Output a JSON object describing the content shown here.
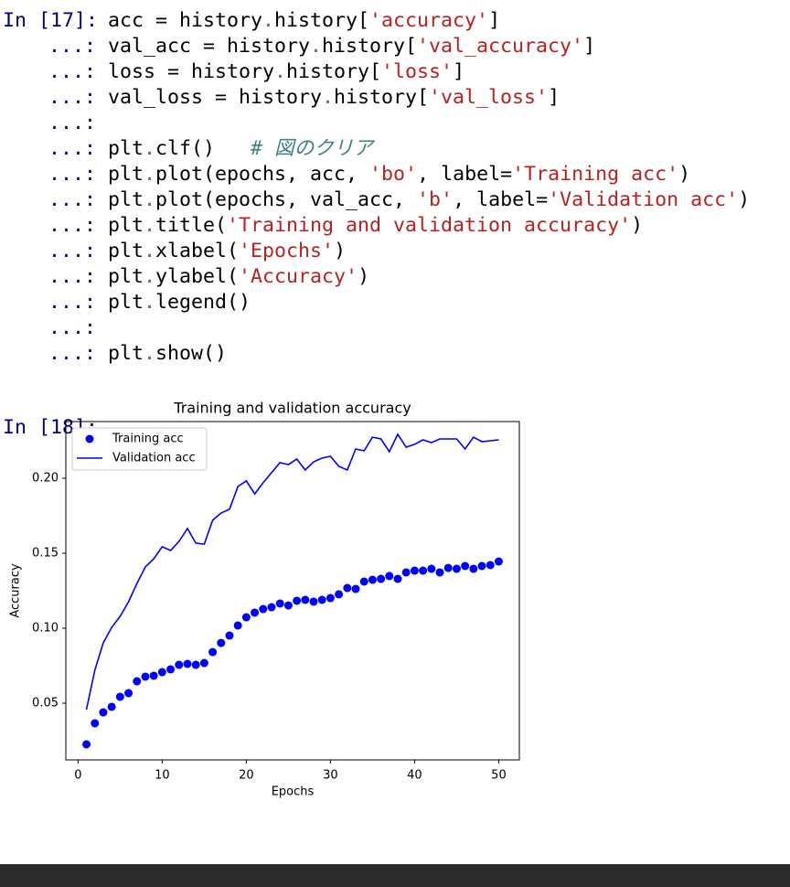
{
  "console": {
    "cells": [
      {
        "prompt": "In [17]:",
        "lines": [
          [
            "acc = history",
            ".",
            "history[",
            "'accuracy'",
            "]"
          ],
          [
            "val_acc = history",
            ".",
            "history[",
            "'val_accuracy'",
            "]"
          ],
          [
            "loss = history",
            ".",
            "history[",
            "'loss'",
            "]"
          ],
          [
            "val_loss = history",
            ".",
            "history[",
            "'val_loss'",
            "]"
          ],
          [],
          [
            "plt",
            ".",
            "clf()   ",
            "# 図のクリア"
          ],
          [
            "plt",
            ".",
            "plot(epochs, acc, ",
            "'bo'",
            ", label=",
            "'Training acc'",
            ")"
          ],
          [
            "plt",
            ".",
            "plot(epochs, val_acc, ",
            "'b'",
            ", label=",
            "'Validation acc'",
            ")"
          ],
          [
            "plt",
            ".",
            "title(",
            "'Training and validation accuracy'",
            ")"
          ],
          [
            "plt",
            ".",
            "xlabel(",
            "'Epochs'",
            ")"
          ],
          [
            "plt",
            ".",
            "ylabel(",
            "'Accuracy'",
            ")"
          ],
          [
            "plt",
            ".",
            "legend()"
          ],
          [],
          [
            "plt",
            ".",
            "show()"
          ]
        ]
      },
      {
        "prompt": "In [18]:",
        "lines": [
          []
        ]
      }
    ],
    "continuation": "...:"
  },
  "chart_data": {
    "type": "line",
    "title": "Training and validation accuracy",
    "x_label": "Epochs",
    "y_label": "Accuracy",
    "x": [
      1,
      2,
      3,
      4,
      5,
      6,
      7,
      8,
      9,
      10,
      11,
      12,
      13,
      14,
      15,
      16,
      17,
      18,
      19,
      20,
      21,
      22,
      23,
      24,
      25,
      26,
      27,
      28,
      29,
      30,
      31,
      32,
      33,
      34,
      35,
      36,
      37,
      38,
      39,
      40,
      41,
      42,
      43,
      44,
      45,
      46,
      47,
      48,
      49,
      50
    ],
    "series": [
      {
        "name": "Training acc",
        "color": "#0000ff",
        "style": "bo",
        "values": [
          0.0226,
          0.0366,
          0.0439,
          0.0476,
          0.0543,
          0.0567,
          0.0646,
          0.0677,
          0.0683,
          0.0707,
          0.0726,
          0.0756,
          0.0762,
          0.0756,
          0.0768,
          0.0841,
          0.0902,
          0.0951,
          0.1018,
          0.1073,
          0.1104,
          0.1128,
          0.114,
          0.1165,
          0.1152,
          0.1183,
          0.1189,
          0.1177,
          0.1189,
          0.1201,
          0.1226,
          0.1268,
          0.1262,
          0.1311,
          0.1323,
          0.1329,
          0.1348,
          0.1329,
          0.1372,
          0.1384,
          0.1384,
          0.1396,
          0.1372,
          0.1402,
          0.1396,
          0.1415,
          0.1396,
          0.1415,
          0.1421,
          0.1445
        ]
      },
      {
        "name": "Validation acc",
        "color": "#0000ff",
        "style": "b",
        "values": [
          0.0457,
          0.072,
          0.0902,
          0.1006,
          0.1079,
          0.1177,
          0.1299,
          0.1409,
          0.1463,
          0.1543,
          0.1518,
          0.1579,
          0.1665,
          0.1567,
          0.1561,
          0.172,
          0.1768,
          0.1793,
          0.1945,
          0.1982,
          0.1896,
          0.197,
          0.2037,
          0.2104,
          0.2091,
          0.2128,
          0.2055,
          0.211,
          0.2134,
          0.2146,
          0.2079,
          0.2055,
          0.2195,
          0.2183,
          0.2274,
          0.2262,
          0.2177,
          0.2293,
          0.2207,
          0.2226,
          0.2256,
          0.2238,
          0.2262,
          0.2262,
          0.2262,
          0.2195,
          0.2274,
          0.2244,
          0.225,
          0.2256
        ]
      }
    ],
    "xlim": [
      -1.45,
      52.45
    ],
    "ylim": [
      0.0122,
      0.2378
    ],
    "xticks": [
      0,
      10,
      20,
      30,
      40,
      50
    ],
    "yticks": [
      0.05,
      {
        "value": 0.1,
        "label": "0.10"
      },
      0.15,
      {
        "value": 0.2,
        "label": "0.20"
      }
    ],
    "legend": "upper left"
  }
}
